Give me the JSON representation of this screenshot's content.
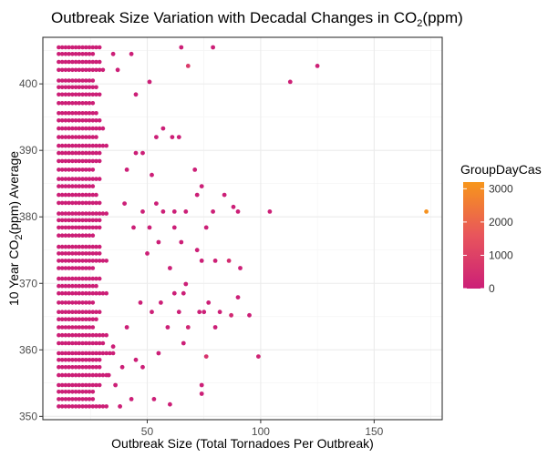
{
  "chart_data": {
    "type": "scatter",
    "title": {
      "prefix": "Outbreak Size Variation with Decadal Changes in CO",
      "sub": "2",
      "suffix": "(ppm)"
    },
    "xlabel": "Outbreak Size (Total Tornadoes Per Outbreak)",
    "ylabel": {
      "prefix": "10 Year CO",
      "sub": "2",
      "suffix": "(ppm) Average"
    },
    "xlim": [
      4,
      180
    ],
    "ylim": [
      349.5,
      407
    ],
    "x_ticks": [
      50,
      100,
      150
    ],
    "y_ticks": [
      350,
      360,
      370,
      380,
      390,
      400
    ],
    "grid": true,
    "legend": {
      "title": "GroupDayCas",
      "position": "right",
      "ticks": [
        0,
        1000,
        2000,
        3000
      ],
      "range": [
        0,
        3200
      ],
      "colors": [
        "#cc1f77",
        "#e8555c",
        "#f7961b"
      ]
    },
    "y_levels": [
      351.5,
      352.6,
      353.7,
      354.7,
      356.2,
      357.4,
      358.5,
      359.5,
      361.0,
      362.2,
      363.4,
      364.6,
      365.7,
      367.1,
      368.5,
      369.6,
      370.7,
      372.3,
      373.4,
      374.5,
      375.5,
      377.2,
      378.4,
      379.5,
      380.5,
      382.1,
      383.3,
      384.6,
      385.7,
      387.1,
      388.4,
      389.6,
      390.7,
      392.0,
      393.3,
      394.5,
      395.6,
      397.1,
      398.4,
      399.5,
      400.5,
      402.1,
      403.3,
      404.5,
      405.5
    ],
    "dense_min_x": 11,
    "dense_max_x": [
      32,
      27,
      26,
      29,
      33,
      30,
      30,
      35,
      31,
      33,
      27,
      28,
      29,
      26,
      33,
      28,
      30,
      26,
      32,
      29,
      30,
      27,
      30,
      29,
      33,
      30,
      28,
      27,
      30,
      27,
      29,
      30,
      32,
      28,
      31,
      30,
      28,
      26,
      30,
      28,
      27,
      31,
      29,
      27,
      29
    ],
    "sparse_points": [
      [
        65,
        405.5,
        10
      ],
      [
        79,
        405.5,
        10
      ],
      [
        68,
        402.7,
        800
      ],
      [
        125,
        402.7,
        30
      ],
      [
        113,
        400.3,
        40
      ],
      [
        51,
        400.3,
        10
      ],
      [
        35,
        404.5,
        10
      ],
      [
        43,
        404.5,
        10
      ],
      [
        37,
        402.1,
        10
      ],
      [
        45,
        398.4,
        10
      ],
      [
        57,
        393.3,
        10
      ],
      [
        61,
        392.0,
        10
      ],
      [
        64,
        392.0,
        10
      ],
      [
        54,
        392.0,
        10
      ],
      [
        45,
        389.6,
        10
      ],
      [
        48,
        389.6,
        10
      ],
      [
        71,
        387.1,
        10
      ],
      [
        41,
        387.1,
        10
      ],
      [
        52,
        386.3,
        10
      ],
      [
        72,
        383.3,
        10
      ],
      [
        74,
        384.6,
        20
      ],
      [
        84,
        383.3,
        10
      ],
      [
        88,
        381.5,
        10
      ],
      [
        104,
        380.8,
        20
      ],
      [
        90,
        380.8,
        10
      ],
      [
        79,
        380.8,
        10
      ],
      [
        67,
        380.8,
        10
      ],
      [
        57,
        380.8,
        10
      ],
      [
        54,
        382.0,
        10
      ],
      [
        62,
        380.8,
        10
      ],
      [
        48,
        380.8,
        10
      ],
      [
        40,
        382.0,
        10
      ],
      [
        173,
        380.8,
        3100
      ],
      [
        76,
        378.4,
        10
      ],
      [
        62,
        378.4,
        10
      ],
      [
        51,
        378.4,
        10
      ],
      [
        44,
        378.4,
        10
      ],
      [
        55,
        376.2,
        10
      ],
      [
        65,
        376.2,
        10
      ],
      [
        72,
        375.0,
        10
      ],
      [
        80,
        373.4,
        30
      ],
      [
        86,
        373.4,
        400
      ],
      [
        74,
        373.4,
        10
      ],
      [
        91,
        372.3,
        10
      ],
      [
        60,
        372.3,
        10
      ],
      [
        50,
        374.5,
        10
      ],
      [
        67,
        369.9,
        10
      ],
      [
        90,
        367.9,
        10
      ],
      [
        62,
        368.5,
        10
      ],
      [
        66,
        368.5,
        10
      ],
      [
        77,
        367.1,
        10
      ],
      [
        56,
        367.1,
        10
      ],
      [
        47,
        367.1,
        10
      ],
      [
        73,
        365.7,
        10
      ],
      [
        82,
        365.7,
        10
      ],
      [
        75,
        365.7,
        10
      ],
      [
        64,
        365.7,
        10
      ],
      [
        52,
        365.7,
        10
      ],
      [
        95,
        365.2,
        10
      ],
      [
        87,
        365.2,
        300
      ],
      [
        68,
        363.4,
        200
      ],
      [
        41,
        363.4,
        10
      ],
      [
        80,
        363.4,
        10
      ],
      [
        59,
        363.4,
        10
      ],
      [
        66,
        361.0,
        10
      ],
      [
        55,
        359.5,
        10
      ],
      [
        76,
        359.0,
        600
      ],
      [
        99,
        359.0,
        150
      ],
      [
        45,
        358.5,
        10
      ],
      [
        39,
        357.4,
        10
      ],
      [
        48,
        357.4,
        10
      ],
      [
        74,
        354.7,
        10
      ],
      [
        74,
        353.4,
        10
      ],
      [
        60,
        351.8,
        10
      ],
      [
        53,
        352.6,
        10
      ],
      [
        43,
        352.6,
        10
      ],
      [
        38,
        351.5,
        10
      ],
      [
        36,
        354.7,
        10
      ],
      [
        33,
        356.2,
        10
      ],
      [
        35,
        360.5,
        10
      ]
    ]
  }
}
